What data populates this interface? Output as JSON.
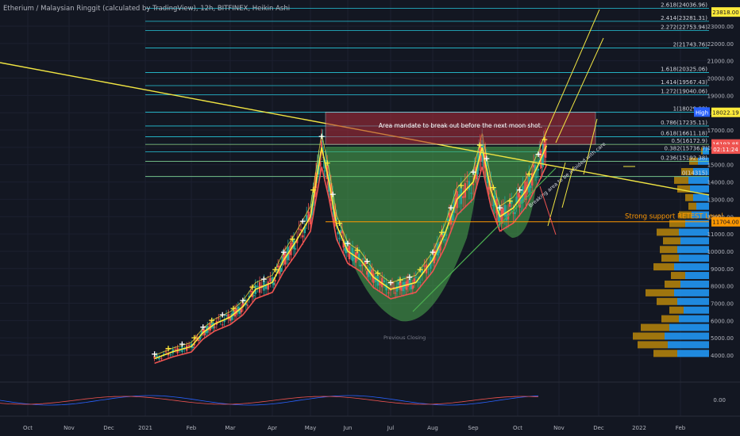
{
  "header": {
    "title": "Etherium / Malaysian Ringgit (calculated by TradingView), 12h, BITFINEX, Heikin Ashi"
  },
  "colors": {
    "background": "#131722",
    "fib_line": "#26c6da",
    "trendline": "#f0e442",
    "ma_yellow": "#ffeb3b",
    "ma_red": "#ef5350",
    "cup_fill": "#4caf50",
    "zone_fill": "#b22d3a",
    "support": "#ff9800",
    "vp_up": "#2196f3",
    "vp_down": "#b8860b",
    "price_up": "#26a69a",
    "price_down": "#ef5350"
  },
  "chart_data": {
    "type": "candlestick",
    "y_axis": {
      "ticks": [
        "4000.00",
        "5000.00",
        "6000.00",
        "7000.00",
        "8000.00",
        "9000.00",
        "10000.00",
        "11000.00",
        "12000.00",
        "13000.00",
        "14000.00",
        "15000.00",
        "16000.00",
        "17000.00",
        "18000.00",
        "19000.00",
        "20000.00",
        "21000.00",
        "22000.00",
        "23000.00"
      ],
      "ylim": [
        3300,
        24000
      ]
    },
    "x_axis": {
      "ticks": [
        "Oct",
        "Nov",
        "Dec",
        "2021",
        "Feb",
        "Mar",
        "Apr",
        "May",
        "Jun",
        "Jul",
        "Aug",
        "Sep",
        "Oct",
        "Nov",
        "Dec",
        "2022",
        "Feb"
      ]
    },
    "fib_levels": [
      {
        "label": "2.618(24036.96)",
        "value": 24036.96
      },
      {
        "label": "2.414(23281.31)",
        "value": 23281.31
      },
      {
        "label": "2.272(22753.94)",
        "value": 22753.94
      },
      {
        "label": "2(21743.76)",
        "value": 21743.76
      },
      {
        "label": "1.618(20325.06)",
        "value": 20325.06
      },
      {
        "label": "1.414(19567.43)",
        "value": 19567.43
      },
      {
        "label": "1.272(19040.06)",
        "value": 19040.06
      },
      {
        "label": "1(18029.88)",
        "value": 18029.88
      },
      {
        "label": "0.786(17235.11)",
        "value": 17235.11
      },
      {
        "label": "0.618(16611.18)",
        "value": 16611.18
      },
      {
        "label": "0.5(16172.9)",
        "value": 16172.9
      },
      {
        "label": "0.382(15736.7)",
        "value": 15736.7
      },
      {
        "label": "0.236(15192.38)",
        "value": 15192.38
      },
      {
        "label": "0(14315)",
        "value": 14315
      }
    ],
    "price_tags": [
      {
        "label": "23818.00",
        "value": 23818,
        "style": "yellow"
      },
      {
        "label": "18022.19",
        "value": 18022.19,
        "style": "yellow"
      },
      {
        "label": "High",
        "value": 18040,
        "style": "blue"
      },
      {
        "label": "16193.85",
        "value": 16193.85,
        "style": "red"
      },
      {
        "label": "02:11:24",
        "value": 15900,
        "style": "red"
      },
      {
        "label": "11704.00",
        "value": 11704,
        "style": "orange"
      }
    ],
    "annotations": {
      "zone_text": "Area mandate to break out before the next moon shot.",
      "support_text": "Strong support RETEST Level",
      "diag_text": "Breaking area to be avoided with care",
      "prev_label": "Previous Closing"
    },
    "osc_axis_label": "0.00"
  }
}
